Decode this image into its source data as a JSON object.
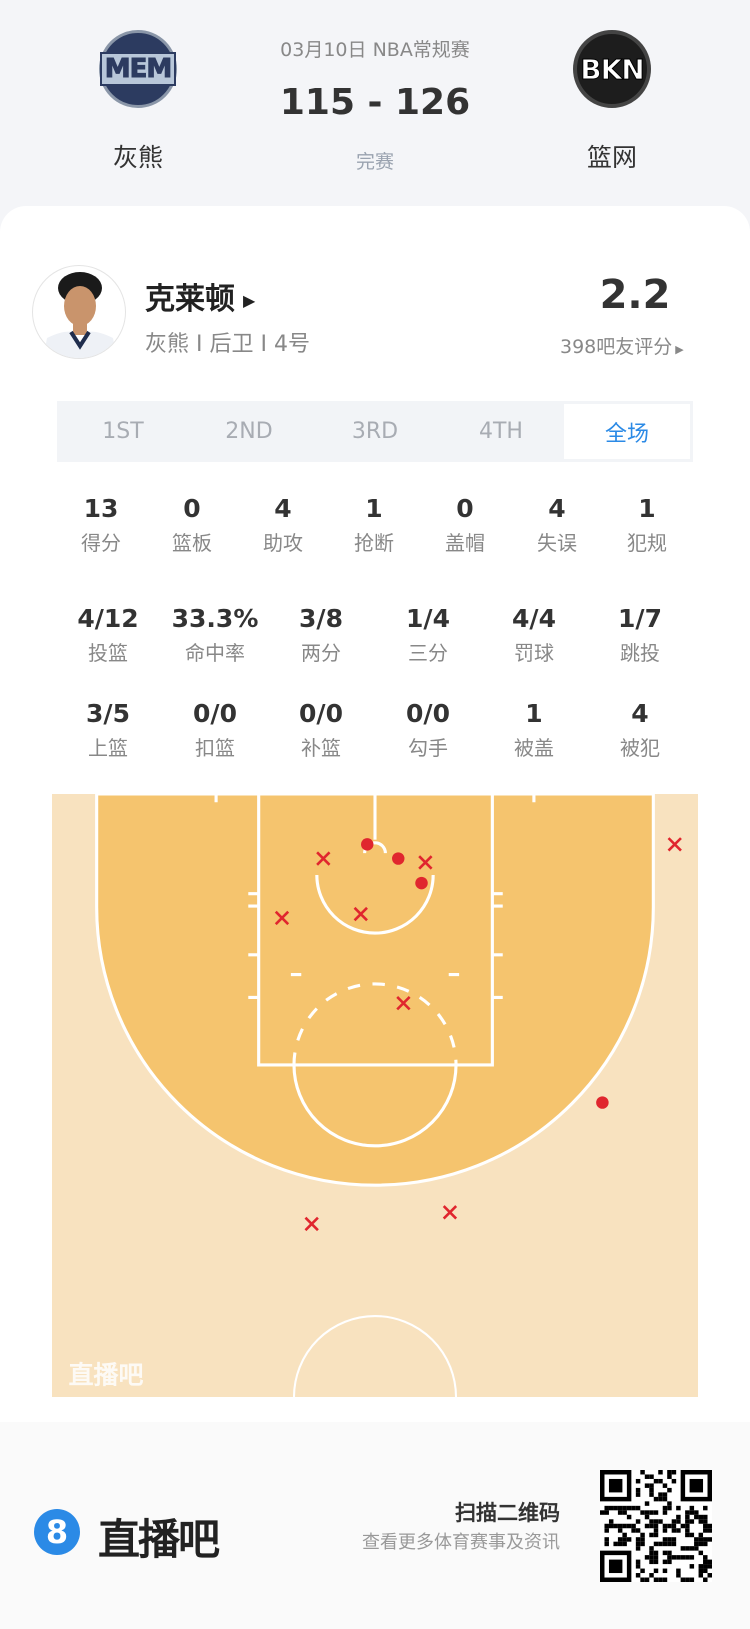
{
  "match": {
    "date_league": "03月10日 NBA常规赛",
    "score": "115 - 126",
    "status": "完赛",
    "home": {
      "abbr": "MEM",
      "name": "灰熊"
    },
    "away": {
      "abbr": "BKN",
      "name": "篮网"
    }
  },
  "player": {
    "name": "克莱顿",
    "info": "灰熊 I 后卫 I 4号",
    "rating": "2.2",
    "rating_count": "398吧友评分"
  },
  "tabs": [
    {
      "label": "1ST"
    },
    {
      "label": "2ND"
    },
    {
      "label": "3RD"
    },
    {
      "label": "4TH"
    },
    {
      "label": "全场",
      "active": true
    }
  ],
  "stats_row1": [
    {
      "value": "13",
      "label": "得分"
    },
    {
      "value": "0",
      "label": "篮板"
    },
    {
      "value": "4",
      "label": "助攻"
    },
    {
      "value": "1",
      "label": "抢断"
    },
    {
      "value": "0",
      "label": "盖帽"
    },
    {
      "value": "4",
      "label": "失误"
    },
    {
      "value": "1",
      "label": "犯规"
    }
  ],
  "stats_row2": [
    {
      "value": "4/12",
      "label": "投篮"
    },
    {
      "value": "33.3%",
      "label": "命中率"
    },
    {
      "value": "3/8",
      "label": "两分"
    },
    {
      "value": "1/4",
      "label": "三分"
    },
    {
      "value": "4/4",
      "label": "罚球"
    },
    {
      "value": "1/7",
      "label": "跳投"
    }
  ],
  "stats_row3": [
    {
      "value": "3/5",
      "label": "上篮"
    },
    {
      "value": "0/0",
      "label": "扣篮"
    },
    {
      "value": "0/0",
      "label": "补篮"
    },
    {
      "value": "0/0",
      "label": "勾手"
    },
    {
      "value": "1",
      "label": "被盖"
    },
    {
      "value": "4",
      "label": "被犯"
    }
  ],
  "shot_chart": {
    "watermark": "直播吧",
    "colors": {
      "made": "#e0262e",
      "missed": "#e0262e",
      "paint_area": "#f5c46e",
      "court": "#f8e2bf"
    },
    "units": "feet (x from center, y from baseline)",
    "shots": [
      {
        "x": -0.6,
        "y": 3.9,
        "made": true
      },
      {
        "x": 1.8,
        "y": 5.0,
        "made": true
      },
      {
        "x": 3.6,
        "y": 6.9,
        "made": true
      },
      {
        "x": 17.6,
        "y": 23.9,
        "made": true
      },
      {
        "x": -4.0,
        "y": 5.0,
        "made": false
      },
      {
        "x": 3.9,
        "y": 5.3,
        "made": false
      },
      {
        "x": -7.2,
        "y": 9.6,
        "made": false
      },
      {
        "x": -1.1,
        "y": 9.3,
        "made": false
      },
      {
        "x": 2.2,
        "y": 16.2,
        "made": false
      },
      {
        "x": 23.2,
        "y": 3.9,
        "made": false
      },
      {
        "x": -4.9,
        "y": 33.3,
        "made": false
      },
      {
        "x": 5.8,
        "y": 32.4,
        "made": false
      }
    ]
  },
  "footer": {
    "brand_badge": "8",
    "brand": "直播吧",
    "scan_title": "扫描二维码",
    "scan_sub": "查看更多体育赛事及资讯",
    "brand_color": "#2b8ae6"
  }
}
